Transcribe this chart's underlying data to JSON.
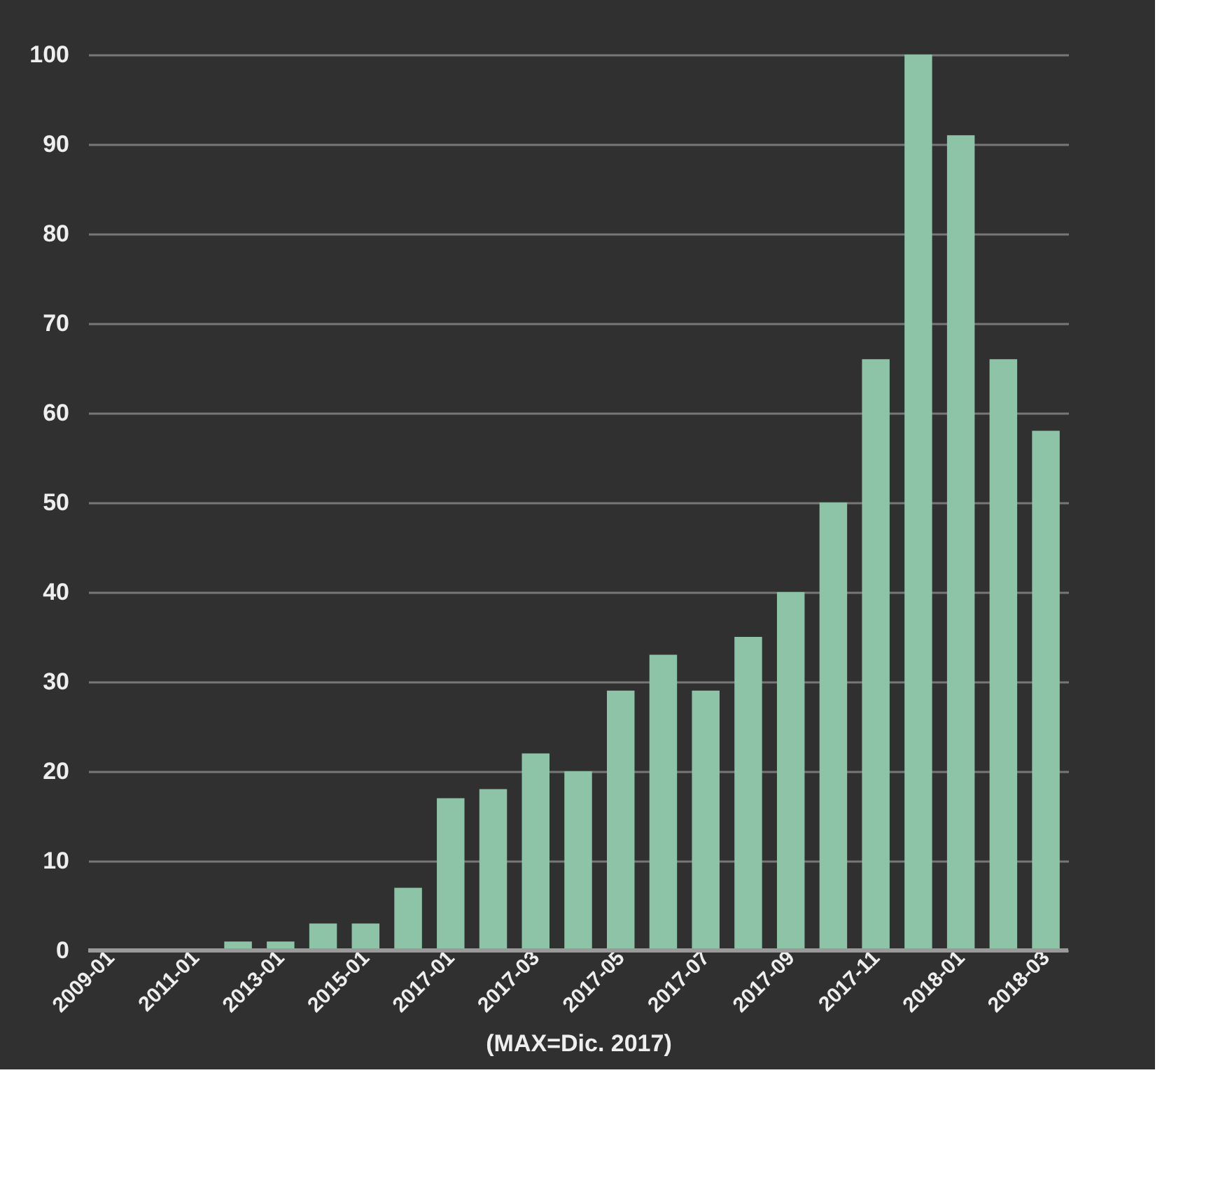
{
  "chart_data": {
    "type": "bar",
    "xlabel": "(MAX=Dic. 2017)",
    "categories": [
      "2009-01",
      null,
      "2011-01",
      null,
      "2013-01",
      null,
      "2015-01",
      null,
      "2017-01",
      null,
      "2017-03",
      null,
      "2017-05",
      null,
      "2017-07",
      null,
      "2017-09",
      null,
      "2017-11",
      null,
      "2018-01",
      null,
      "2018-03"
    ],
    "values": [
      0,
      0,
      0,
      1,
      1,
      3,
      3,
      7,
      17,
      18,
      22,
      20,
      29,
      33,
      29,
      35,
      40,
      50,
      66,
      100,
      91,
      66,
      58
    ],
    "color": "#8dc4a8",
    "ylim": [
      0,
      100
    ],
    "yticks": [
      0,
      10,
      20,
      30,
      40,
      50,
      60,
      70,
      80,
      90,
      100
    ],
    "grid": "y"
  }
}
